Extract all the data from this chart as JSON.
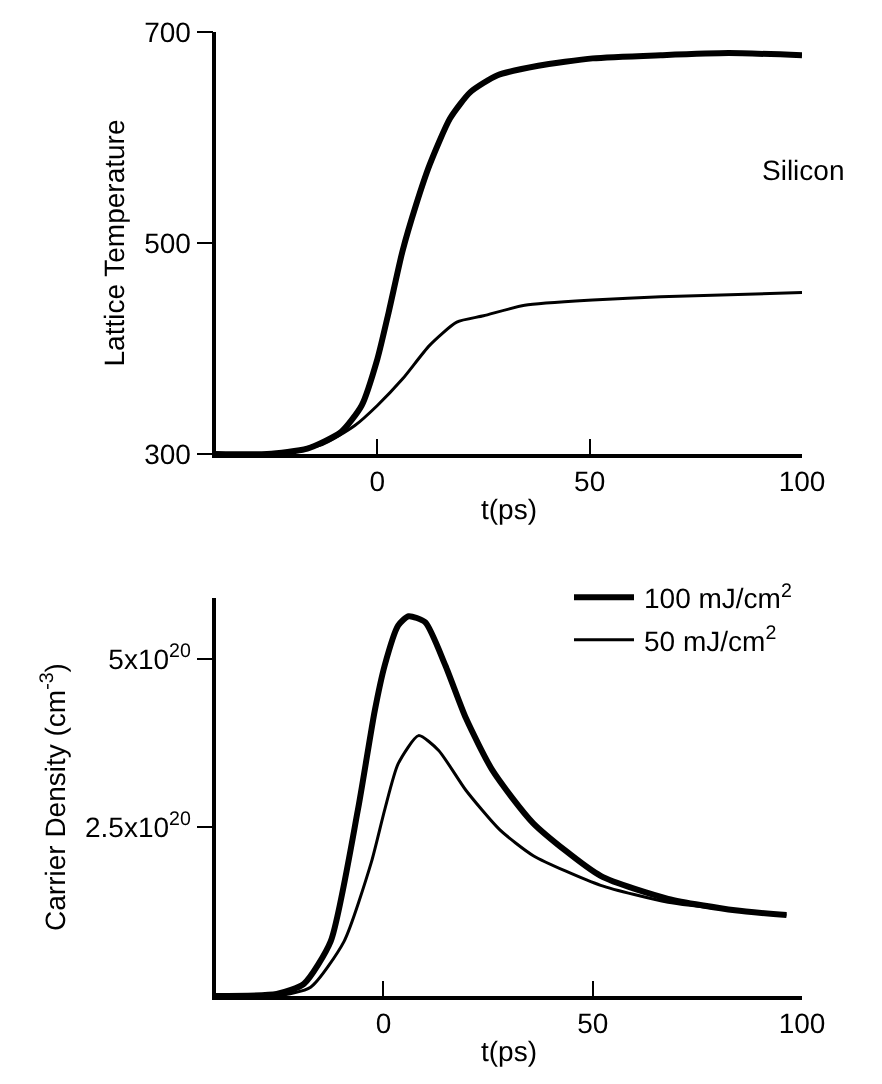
{
  "chart_data": [
    {
      "type": "line",
      "xlabel": "t(ps)",
      "ylabel": "Lattice Temperature",
      "annotations": [
        "Silicon"
      ],
      "xlim": [
        -38,
        100
      ],
      "xticks": [
        0,
        50,
        100
      ],
      "ylim": [
        300,
        700
      ],
      "yticks": [
        300,
        500,
        700
      ],
      "grid": false,
      "legend": false,
      "marker": "none",
      "line_style": "solid",
      "series": [
        {
          "color": "#000000",
          "x": [
            -38,
            -26,
            -16.5,
            -8.5,
            -3.7,
            0,
            2.7,
            5.9,
            9.1,
            12.3,
            17.1,
            21.9,
            28.3,
            37.9,
            50.7,
            66.7,
            82.7,
            100
          ],
          "values": [
            300,
            300,
            305,
            321,
            346,
            390,
            435,
            492,
            536,
            574,
            618,
            643,
            659,
            668,
            675,
            678,
            680,
            678
          ]
        },
        {
          "color": "#000000",
          "x": [
            -38,
            -26,
            -13,
            -5.3,
            0,
            5.9,
            12.3,
            18.7,
            25,
            34.7,
            50.7,
            66.7,
            100
          ],
          "values": [
            300,
            300,
            309,
            327,
            346,
            371,
            403,
            425,
            431,
            441,
            446,
            449,
            453
          ]
        }
      ]
    },
    {
      "type": "line",
      "xlabel": "t(ps)",
      "ylabel": "Carrier Density (cm$^{-3}$)",
      "xlim": [
        -40,
        100
      ],
      "xticks": [
        0,
        50,
        100
      ],
      "ylim": [
        0,
        5.9e+20
      ],
      "yticks": [
        {
          "value": 2.5e+20,
          "label": "2.5x10$^{20}$"
        },
        {
          "value": 5e+20,
          "label": "5x10$^{20}$"
        }
      ],
      "grid": false,
      "legend": "top right",
      "marker": "none",
      "line_style": "solid",
      "series": [
        {
          "name": "100 mJ/cm$^{2}$",
          "color": "#000000",
          "x": [
            -40,
            -25.5,
            -19,
            -12.6,
            -6.1,
            -2.1,
            0.3,
            3.5,
            6,
            10,
            14.8,
            19.7,
            26.1,
            35.8,
            51.9,
            68,
            84,
            96.3
          ],
          "values": [
            0,
            3e+18,
            1.8e+19,
            8.1e+19,
            2.76e+20,
            4.22e+20,
            4.9e+20,
            5.49e+20,
            5.63e+20,
            5.54e+20,
            4.9e+20,
            4.12e+20,
            3.34e+20,
            2.56e+20,
            1.78e+20,
            1.44e+20,
            1.27e+20,
            1.2e+20
          ]
        },
        {
          "name": "50 mJ/cm$^{2}$",
          "color": "#000000",
          "x": [
            -40,
            -25.5,
            -17.4,
            -9.4,
            -2.9,
            0.3,
            3.5,
            8.4,
            13.2,
            19.7,
            27.7,
            35.8,
            51.9,
            68,
            84,
            96.3
          ],
          "values": [
            0,
            0,
            1.3e+19,
            8.1e+19,
            1.98e+20,
            2.76e+20,
            3.44e+20,
            3.86e+20,
            3.64e+20,
            3.05e+20,
            2.47e+20,
            2.08e+20,
            1.64e+20,
            1.39e+20,
            1.27e+20,
            1.2e+20
          ]
        }
      ]
    }
  ]
}
